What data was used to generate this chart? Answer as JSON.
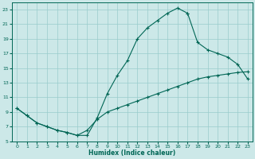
{
  "background_color": "#cce8e8",
  "grid_color": "#99cccc",
  "line_color": "#006655",
  "xlabel": "Humidex (Indice chaleur)",
  "xlim": [
    -0.5,
    23.5
  ],
  "ylim": [
    5.0,
    24.0
  ],
  "xticks": [
    0,
    1,
    2,
    3,
    4,
    5,
    6,
    7,
    8,
    9,
    10,
    11,
    12,
    13,
    14,
    15,
    16,
    17,
    18,
    19,
    20,
    21,
    22,
    23
  ],
  "yticks": [
    5,
    7,
    9,
    11,
    13,
    15,
    17,
    19,
    21,
    23
  ],
  "curve1_x": [
    0,
    1,
    2,
    3,
    4,
    5,
    6,
    7,
    8,
    9,
    10,
    11,
    12,
    13,
    14,
    15,
    16,
    17
  ],
  "curve1_y": [
    9.5,
    8.5,
    7.5,
    7.0,
    6.5,
    6.2,
    5.8,
    5.8,
    8.2,
    11.5,
    14.0,
    16.0,
    19.0,
    20.5,
    21.5,
    22.5,
    23.2,
    22.5
  ],
  "curve2_x": [
    17,
    18,
    19,
    20,
    21,
    22,
    23
  ],
  "curve2_y": [
    22.5,
    18.5,
    17.5,
    17.0,
    16.5,
    15.5,
    13.5
  ],
  "curve3_x": [
    0,
    1,
    2,
    3,
    4,
    5,
    6,
    7,
    8,
    9,
    10,
    11,
    12,
    13,
    14,
    15,
    16,
    17,
    18,
    19,
    20,
    21,
    22,
    23
  ],
  "curve3_y": [
    9.5,
    8.5,
    7.5,
    7.0,
    6.5,
    6.2,
    5.8,
    6.5,
    8.0,
    9.0,
    9.5,
    10.0,
    10.5,
    11.0,
    11.5,
    12.0,
    12.5,
    13.0,
    13.5,
    13.8,
    14.0,
    14.2,
    14.4,
    14.5
  ]
}
